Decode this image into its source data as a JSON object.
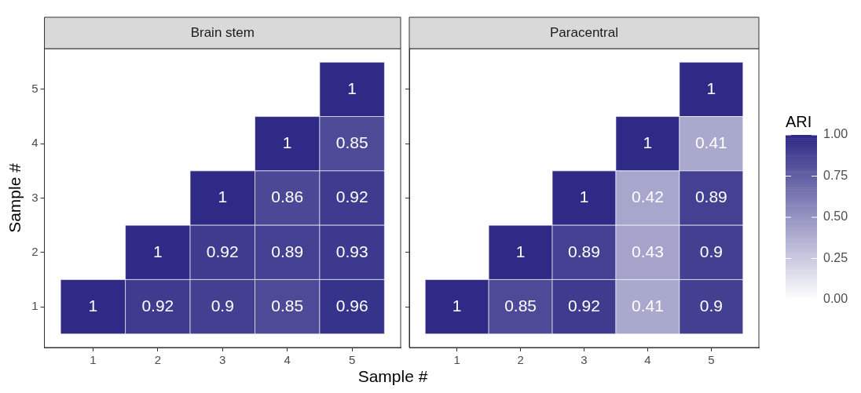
{
  "chart_data": [
    {
      "type": "heatmap",
      "title": "Brain stem",
      "xlabel": "Sample #",
      "ylabel": "Sample #",
      "categories": [
        "1",
        "2",
        "3",
        "4",
        "5"
      ],
      "y_categories": [
        "5",
        "4",
        "3",
        "2",
        "1"
      ],
      "data_labels": true,
      "cells": [
        [
          null,
          null,
          null,
          null,
          1
        ],
        [
          null,
          null,
          null,
          1,
          0.85
        ],
        [
          null,
          null,
          1,
          0.86,
          0.92
        ],
        [
          null,
          1,
          0.92,
          0.89,
          0.93
        ],
        [
          1,
          0.92,
          0.9,
          0.85,
          0.96
        ]
      ]
    },
    {
      "type": "heatmap",
      "title": "Paracentral",
      "categories": [
        "1",
        "2",
        "3",
        "4",
        "5"
      ],
      "y_categories": [
        "5",
        "4",
        "3",
        "2",
        "1"
      ],
      "clim": [
        0,
        1
      ],
      "clabel": "ARI",
      "data_labels": true,
      "tick_labels": "x",
      "cticks": [
        {
          "value": 0,
          "label": "0.00"
        },
        {
          "value": 0.25,
          "label": "0.25"
        },
        {
          "value": 0.5,
          "label": "0.50"
        },
        {
          "value": 0.75,
          "label": "0.75"
        },
        {
          "value": 1,
          "label": "1.00"
        }
      ],
      "cells": [
        [
          null,
          null,
          null,
          null,
          1
        ],
        [
          null,
          null,
          null,
          1,
          0.41
        ],
        [
          null,
          null,
          1,
          0.42,
          0.89
        ],
        [
          null,
          1,
          0.89,
          0.43,
          0.9
        ],
        [
          1,
          0.85,
          0.92,
          0.41,
          0.9
        ]
      ]
    }
  ]
}
